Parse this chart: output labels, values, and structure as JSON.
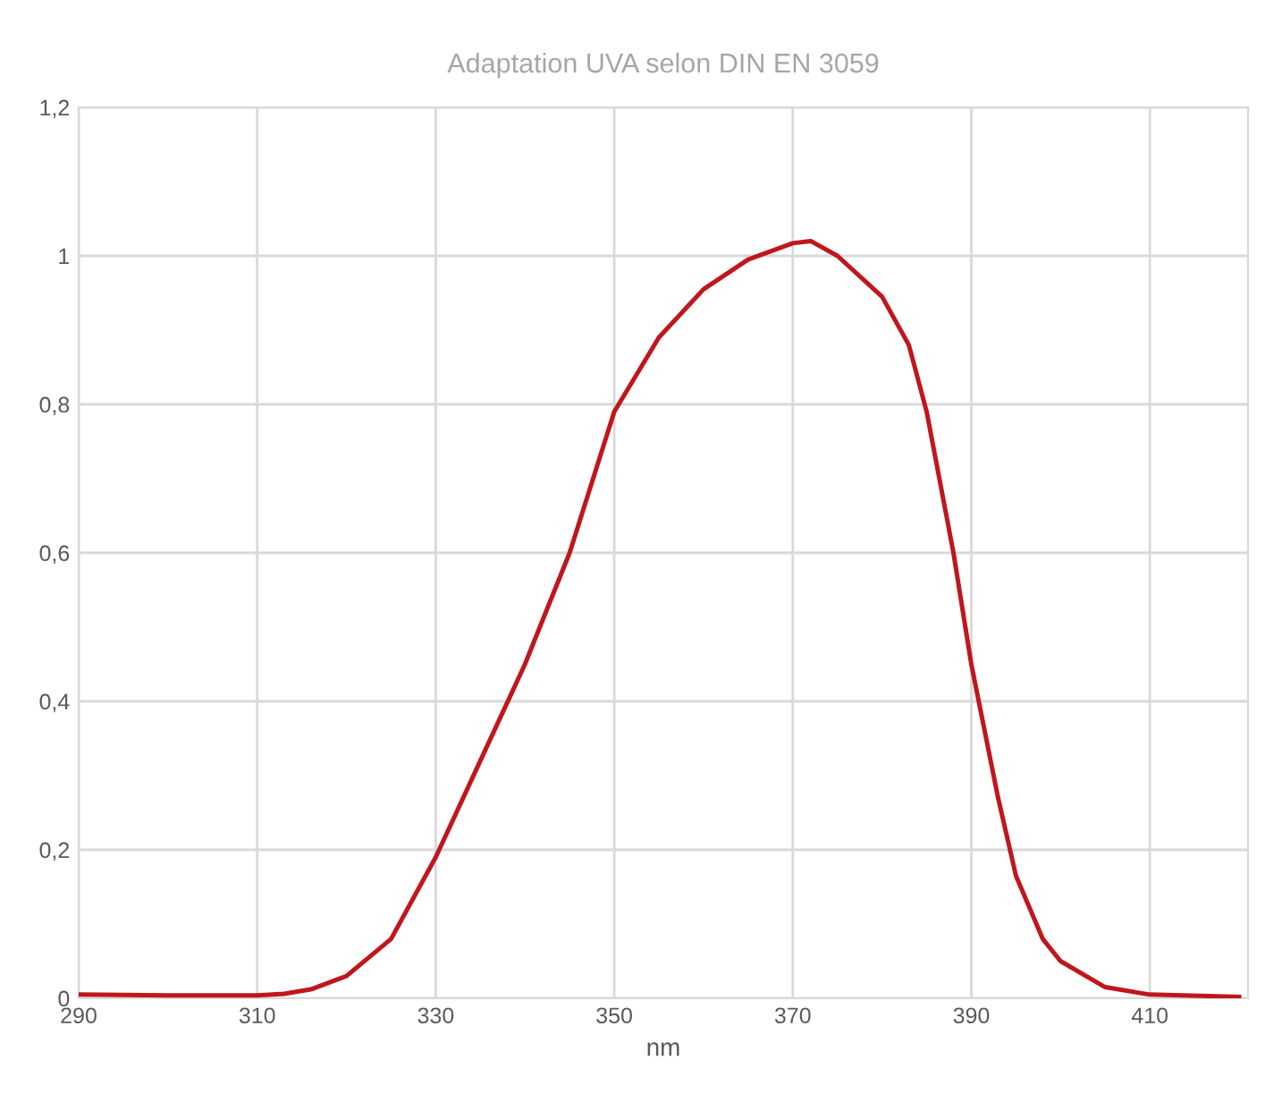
{
  "chart_data": {
    "type": "line",
    "title": "Adaptation UVA selon DIN EN 3059",
    "xlabel": "nm",
    "x": [
      290,
      300,
      310,
      313,
      316,
      320,
      325,
      330,
      335,
      340,
      345,
      350,
      355,
      360,
      365,
      370,
      372,
      375,
      380,
      383,
      385,
      388,
      390,
      393,
      395,
      398,
      400,
      405,
      410,
      420
    ],
    "series": [
      {
        "color": "#c0161c",
        "values": [
          0.005,
          0.004,
          0.004,
          0.006,
          0.012,
          0.03,
          0.08,
          0.19,
          0.32,
          0.45,
          0.6,
          0.79,
          0.89,
          0.955,
          0.995,
          1.017,
          1.02,
          1.0,
          0.945,
          0.88,
          0.79,
          0.6,
          0.45,
          0.27,
          0.165,
          0.08,
          0.05,
          0.015,
          0.005,
          0.002
        ]
      }
    ],
    "xlim": [
      290,
      421
    ],
    "ylim": [
      0,
      1.2
    ],
    "xticks": [
      290,
      310,
      330,
      350,
      370,
      390,
      410
    ],
    "yticks": [
      0,
      {
        "value": 0.2,
        "label": "0,2"
      },
      {
        "value": 0.4,
        "label": "0,4"
      },
      {
        "value": 0.6,
        "label": "0,6"
      },
      {
        "value": 0.8,
        "label": "0,8"
      },
      1,
      {
        "value": 1.2,
        "label": "1,2"
      }
    ],
    "grid": true,
    "marker": "none",
    "line_style": "solid"
  }
}
